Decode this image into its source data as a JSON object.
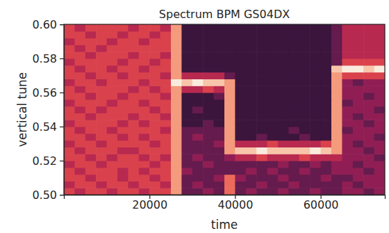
{
  "chart_data": {
    "type": "heatmap",
    "title": "Spectrum BPM GS04DX",
    "x_label": "time",
    "y_label": "vertical tune",
    "xlim": [
      0,
      75000
    ],
    "ylim": [
      0.5,
      0.6
    ],
    "xticks": [
      20000,
      40000,
      60000
    ],
    "yticks": [
      {
        "value": 0.5,
        "label": "0.50"
      },
      {
        "value": 0.52,
        "label": "0.52"
      },
      {
        "value": 0.54,
        "label": "0.54"
      },
      {
        "value": 0.56,
        "label": "0.56"
      },
      {
        "value": 0.58,
        "label": "0.58"
      },
      {
        "value": 0.6,
        "label": "0.60"
      }
    ],
    "x_bins": [
      0,
      2500,
      5000,
      7500,
      10000,
      12500,
      15000,
      17500,
      20000,
      22500,
      25000,
      27500,
      30000,
      32500,
      35000,
      37500,
      40000,
      42500,
      45000,
      47500,
      50000,
      52500,
      55000,
      57500,
      60000,
      62500,
      65000,
      67500,
      70000,
      72500,
      75000
    ],
    "y_bins": [
      0.5,
      0.504,
      0.508,
      0.512,
      0.516,
      0.52,
      0.524,
      0.528,
      0.532,
      0.536,
      0.54,
      0.544,
      0.548,
      0.552,
      0.556,
      0.56,
      0.564,
      0.568,
      0.572,
      0.576,
      0.58,
      0.584,
      0.588,
      0.592,
      0.596,
      0.6
    ],
    "cells": [
      [
        5,
        4,
        5,
        5,
        4,
        5,
        5,
        4,
        5,
        5,
        7,
        2,
        2,
        3,
        2,
        6,
        2,
        3,
        2,
        2,
        3,
        2,
        2,
        3,
        2,
        2,
        3,
        3,
        2,
        3
      ],
      [
        4,
        5,
        5,
        4,
        5,
        5,
        4,
        5,
        5,
        4,
        7,
        2,
        3,
        2,
        2,
        6,
        2,
        2,
        3,
        2,
        2,
        3,
        2,
        2,
        2,
        2,
        3,
        2,
        3,
        3
      ],
      [
        5,
        5,
        4,
        5,
        5,
        4,
        5,
        5,
        4,
        5,
        7,
        2,
        2,
        2,
        3,
        6,
        3,
        2,
        2,
        2,
        3,
        2,
        2,
        2,
        3,
        2,
        2,
        3,
        3,
        3
      ],
      [
        5,
        4,
        5,
        5,
        5,
        4,
        5,
        4,
        5,
        5,
        7,
        3,
        2,
        2,
        2,
        2,
        2,
        3,
        2,
        3,
        2,
        2,
        3,
        2,
        2,
        3,
        3,
        3,
        2,
        3
      ],
      [
        4,
        5,
        5,
        4,
        5,
        5,
        5,
        5,
        4,
        5,
        7,
        2,
        2,
        3,
        2,
        2,
        2,
        2,
        2,
        2,
        3,
        2,
        2,
        3,
        2,
        3,
        3,
        2,
        3,
        3
      ],
      [
        5,
        5,
        4,
        5,
        4,
        5,
        5,
        4,
        5,
        4,
        7,
        2,
        3,
        2,
        2,
        3,
        4,
        4,
        5,
        4,
        4,
        4,
        5,
        4,
        4,
        4,
        3,
        3,
        3,
        2
      ],
      [
        5,
        4,
        5,
        5,
        5,
        4,
        4,
        5,
        5,
        5,
        7,
        2,
        2,
        2,
        2,
        7,
        8,
        8,
        9,
        8,
        8,
        8,
        8,
        9,
        8,
        7,
        3,
        3,
        2,
        3
      ],
      [
        4,
        5,
        5,
        4,
        5,
        5,
        5,
        5,
        4,
        5,
        7,
        2,
        2,
        2,
        3,
        7,
        4,
        4,
        4,
        5,
        4,
        4,
        4,
        4,
        5,
        7,
        3,
        2,
        3,
        3
      ],
      [
        5,
        5,
        4,
        5,
        5,
        4,
        5,
        4,
        5,
        5,
        7,
        2,
        3,
        2,
        2,
        7,
        1,
        1,
        2,
        1,
        1,
        1,
        2,
        1,
        1,
        7,
        3,
        3,
        3,
        2
      ],
      [
        5,
        4,
        5,
        5,
        4,
        5,
        5,
        5,
        5,
        4,
        7,
        2,
        2,
        2,
        2,
        7,
        1,
        1,
        1,
        1,
        1,
        2,
        1,
        1,
        1,
        7,
        2,
        3,
        3,
        3
      ],
      [
        4,
        5,
        5,
        5,
        5,
        4,
        5,
        4,
        5,
        5,
        7,
        1,
        1,
        2,
        1,
        7,
        1,
        1,
        1,
        1,
        1,
        1,
        1,
        1,
        1,
        7,
        3,
        3,
        2,
        3
      ],
      [
        5,
        5,
        4,
        5,
        5,
        5,
        4,
        5,
        5,
        4,
        7,
        1,
        1,
        1,
        1,
        7,
        1,
        1,
        1,
        1,
        1,
        1,
        1,
        1,
        1,
        7,
        3,
        2,
        3,
        3
      ],
      [
        5,
        4,
        5,
        4,
        5,
        5,
        5,
        5,
        4,
        5,
        7,
        1,
        2,
        1,
        1,
        7,
        1,
        1,
        1,
        1,
        1,
        1,
        1,
        1,
        1,
        7,
        3,
        3,
        3,
        2
      ],
      [
        4,
        5,
        5,
        5,
        4,
        5,
        5,
        4,
        5,
        5,
        7,
        1,
        1,
        1,
        1,
        7,
        1,
        1,
        1,
        1,
        1,
        1,
        1,
        1,
        1,
        7,
        2,
        3,
        3,
        3
      ],
      [
        5,
        5,
        4,
        5,
        5,
        4,
        5,
        5,
        5,
        4,
        7,
        1,
        1,
        1,
        2,
        7,
        1,
        1,
        1,
        1,
        1,
        1,
        1,
        1,
        1,
        7,
        3,
        3,
        2,
        3
      ],
      [
        5,
        4,
        5,
        5,
        5,
        5,
        4,
        5,
        4,
        5,
        7,
        4,
        4,
        5,
        4,
        7,
        1,
        1,
        1,
        1,
        1,
        1,
        1,
        1,
        1,
        7,
        3,
        3,
        3,
        3
      ],
      [
        4,
        5,
        5,
        4,
        5,
        5,
        5,
        4,
        5,
        5,
        9,
        8,
        9,
        8,
        8,
        7,
        1,
        1,
        1,
        1,
        1,
        1,
        1,
        1,
        1,
        7,
        3,
        2,
        3,
        3
      ],
      [
        5,
        5,
        4,
        5,
        5,
        4,
        5,
        5,
        5,
        4,
        7,
        4,
        4,
        4,
        4,
        2,
        1,
        1,
        1,
        1,
        1,
        1,
        1,
        1,
        1,
        7,
        5,
        5,
        5,
        5
      ],
      [
        5,
        4,
        5,
        5,
        4,
        5,
        5,
        4,
        5,
        5,
        7,
        1,
        1,
        1,
        1,
        1,
        1,
        1,
        1,
        1,
        1,
        1,
        1,
        1,
        1,
        8,
        9,
        9,
        8,
        9
      ],
      [
        4,
        5,
        5,
        5,
        5,
        4,
        5,
        5,
        4,
        5,
        7,
        1,
        1,
        1,
        1,
        1,
        1,
        1,
        1,
        1,
        1,
        1,
        1,
        1,
        1,
        2,
        5,
        5,
        5,
        5
      ],
      [
        5,
        5,
        4,
        5,
        5,
        5,
        4,
        5,
        5,
        4,
        7,
        1,
        1,
        1,
        1,
        1,
        1,
        1,
        1,
        1,
        1,
        1,
        1,
        1,
        1,
        2,
        4,
        4,
        4,
        4
      ],
      [
        5,
        4,
        5,
        4,
        5,
        5,
        5,
        5,
        5,
        5,
        7,
        1,
        1,
        1,
        1,
        1,
        1,
        1,
        1,
        1,
        1,
        1,
        1,
        1,
        1,
        2,
        4,
        4,
        4,
        4
      ],
      [
        4,
        5,
        5,
        5,
        4,
        5,
        5,
        4,
        5,
        5,
        7,
        1,
        1,
        1,
        1,
        1,
        1,
        1,
        1,
        1,
        1,
        1,
        1,
        1,
        1,
        2,
        4,
        4,
        4,
        4
      ],
      [
        5,
        5,
        4,
        5,
        5,
        4,
        5,
        5,
        4,
        5,
        7,
        1,
        1,
        1,
        1,
        1,
        1,
        1,
        1,
        1,
        1,
        1,
        1,
        1,
        1,
        2,
        4,
        4,
        4,
        4
      ],
      [
        5,
        4,
        5,
        5,
        5,
        5,
        4,
        5,
        5,
        4,
        7,
        1,
        1,
        1,
        1,
        1,
        1,
        1,
        1,
        1,
        1,
        1,
        1,
        1,
        1,
        2,
        4,
        4,
        4,
        4
      ]
    ]
  }
}
